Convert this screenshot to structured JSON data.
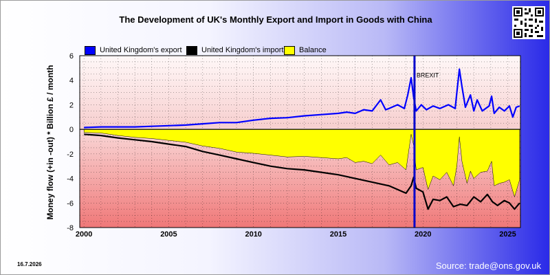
{
  "chart_data": {
    "type": "line",
    "title": "The Development of UK's Monthly Export and Import in Goods with China",
    "ylabel": "Money flow (+in -out) * Billion £ / month",
    "xlabel": "",
    "ylim": [
      -8,
      6
    ],
    "yticks": [
      6,
      4,
      2,
      0,
      -2,
      -4,
      -6,
      -8
    ],
    "xlim": [
      1999.75,
      2025.75
    ],
    "xticks": [
      "2000",
      "2005",
      "2010",
      "2015",
      "2020",
      "2025"
    ],
    "grid": true,
    "legend_position": "top-left",
    "series": [
      {
        "name": "United Kingdom's export",
        "color": "#0000ff",
        "points": [
          [
            2000.0,
            0.15
          ],
          [
            2001.0,
            0.2
          ],
          [
            2002.0,
            0.2
          ],
          [
            2003.0,
            0.2
          ],
          [
            2004.0,
            0.25
          ],
          [
            2005.0,
            0.3
          ],
          [
            2006.0,
            0.35
          ],
          [
            2007.0,
            0.45
          ],
          [
            2008.0,
            0.55
          ],
          [
            2009.0,
            0.55
          ],
          [
            2010.0,
            0.75
          ],
          [
            2011.0,
            0.9
          ],
          [
            2012.0,
            0.95
          ],
          [
            2013.0,
            1.1
          ],
          [
            2014.0,
            1.2
          ],
          [
            2015.0,
            1.3
          ],
          [
            2015.5,
            1.4
          ],
          [
            2016.0,
            1.3
          ],
          [
            2016.5,
            1.6
          ],
          [
            2017.0,
            1.5
          ],
          [
            2017.5,
            2.4
          ],
          [
            2017.8,
            1.6
          ],
          [
            2018.0,
            1.7
          ],
          [
            2018.5,
            2.0
          ],
          [
            2018.9,
            1.7
          ],
          [
            2019.1,
            2.8
          ],
          [
            2019.3,
            4.2
          ],
          [
            2019.45,
            2.6
          ],
          [
            2019.6,
            1.5
          ],
          [
            2019.9,
            2.0
          ],
          [
            2020.2,
            1.6
          ],
          [
            2020.6,
            1.9
          ],
          [
            2021.0,
            1.7
          ],
          [
            2021.5,
            2.0
          ],
          [
            2021.9,
            1.7
          ],
          [
            2022.0,
            3.0
          ],
          [
            2022.15,
            4.9
          ],
          [
            2022.3,
            3.5
          ],
          [
            2022.5,
            1.8
          ],
          [
            2022.8,
            2.8
          ],
          [
            2023.0,
            1.5
          ],
          [
            2023.2,
            2.4
          ],
          [
            2023.5,
            1.5
          ],
          [
            2023.9,
            1.9
          ],
          [
            2024.05,
            2.7
          ],
          [
            2024.2,
            1.3
          ],
          [
            2024.5,
            1.8
          ],
          [
            2024.8,
            1.5
          ],
          [
            2025.1,
            1.9
          ],
          [
            2025.3,
            1.0
          ],
          [
            2025.5,
            1.8
          ],
          [
            2025.7,
            1.9
          ]
        ]
      },
      {
        "name": "United Kingdom's import",
        "color": "#000000",
        "points": [
          [
            2000.0,
            -0.4
          ],
          [
            2001.0,
            -0.5
          ],
          [
            2002.0,
            -0.7
          ],
          [
            2003.0,
            -0.85
          ],
          [
            2004.0,
            -1.0
          ],
          [
            2005.0,
            -1.2
          ],
          [
            2006.0,
            -1.4
          ],
          [
            2007.0,
            -1.8
          ],
          [
            2008.0,
            -2.1
          ],
          [
            2009.0,
            -2.4
          ],
          [
            2010.0,
            -2.7
          ],
          [
            2011.0,
            -3.0
          ],
          [
            2012.0,
            -3.2
          ],
          [
            2013.0,
            -3.3
          ],
          [
            2014.0,
            -3.5
          ],
          [
            2015.0,
            -3.7
          ],
          [
            2016.0,
            -4.0
          ],
          [
            2017.0,
            -4.3
          ],
          [
            2018.0,
            -4.6
          ],
          [
            2019.0,
            -5.2
          ],
          [
            2019.3,
            -4.6
          ],
          [
            2019.45,
            -3.9
          ],
          [
            2019.6,
            -4.8
          ],
          [
            2020.0,
            -5.1
          ],
          [
            2020.3,
            -6.5
          ],
          [
            2020.6,
            -5.7
          ],
          [
            2021.0,
            -5.8
          ],
          [
            2021.4,
            -5.5
          ],
          [
            2021.8,
            -6.3
          ],
          [
            2022.2,
            -6.1
          ],
          [
            2022.6,
            -6.2
          ],
          [
            2023.0,
            -5.5
          ],
          [
            2023.4,
            -5.9
          ],
          [
            2023.8,
            -5.3
          ],
          [
            2024.1,
            -5.9
          ],
          [
            2024.4,
            -6.2
          ],
          [
            2024.8,
            -5.8
          ],
          [
            2025.1,
            -6.0
          ],
          [
            2025.4,
            -6.5
          ],
          [
            2025.7,
            -6.0
          ]
        ]
      },
      {
        "name": "Balance",
        "color": "#ffff00",
        "points": [
          [
            2000.0,
            -0.25
          ],
          [
            2001.0,
            -0.3
          ],
          [
            2002.0,
            -0.5
          ],
          [
            2003.0,
            -0.65
          ],
          [
            2004.0,
            -0.75
          ],
          [
            2005.0,
            -0.9
          ],
          [
            2006.0,
            -1.05
          ],
          [
            2007.0,
            -1.35
          ],
          [
            2008.0,
            -1.55
          ],
          [
            2009.0,
            -1.85
          ],
          [
            2010.0,
            -1.95
          ],
          [
            2011.0,
            -2.1
          ],
          [
            2012.0,
            -2.25
          ],
          [
            2013.0,
            -2.2
          ],
          [
            2014.0,
            -2.3
          ],
          [
            2015.0,
            -2.4
          ],
          [
            2015.5,
            -2.3
          ],
          [
            2016.0,
            -2.7
          ],
          [
            2016.5,
            -2.6
          ],
          [
            2017.0,
            -2.8
          ],
          [
            2017.5,
            -2.1
          ],
          [
            2018.0,
            -2.9
          ],
          [
            2018.5,
            -2.7
          ],
          [
            2019.0,
            -3.3
          ],
          [
            2019.3,
            -0.4
          ],
          [
            2019.45,
            -1.3
          ],
          [
            2019.6,
            -3.3
          ],
          [
            2020.0,
            -3.1
          ],
          [
            2020.3,
            -4.9
          ],
          [
            2020.6,
            -3.8
          ],
          [
            2021.0,
            -4.1
          ],
          [
            2021.4,
            -3.5
          ],
          [
            2021.8,
            -4.6
          ],
          [
            2022.0,
            -3.0
          ],
          [
            2022.15,
            -0.6
          ],
          [
            2022.3,
            -2.6
          ],
          [
            2022.6,
            -4.4
          ],
          [
            2022.8,
            -3.4
          ],
          [
            2023.0,
            -4.0
          ],
          [
            2023.4,
            -3.5
          ],
          [
            2023.8,
            -3.4
          ],
          [
            2024.05,
            -2.6
          ],
          [
            2024.2,
            -4.6
          ],
          [
            2024.5,
            -4.4
          ],
          [
            2024.8,
            -4.3
          ],
          [
            2025.1,
            -4.1
          ],
          [
            2025.4,
            -5.5
          ],
          [
            2025.7,
            -4.1
          ]
        ]
      }
    ],
    "annotations": [
      {
        "label": "BREXIT",
        "x": 2019.5,
        "color": "#0000cc"
      }
    ]
  },
  "date_label": "16.7.2026",
  "source_label": "Source: trade@ons.gov.uk",
  "qr_code": "qr-code-icon"
}
